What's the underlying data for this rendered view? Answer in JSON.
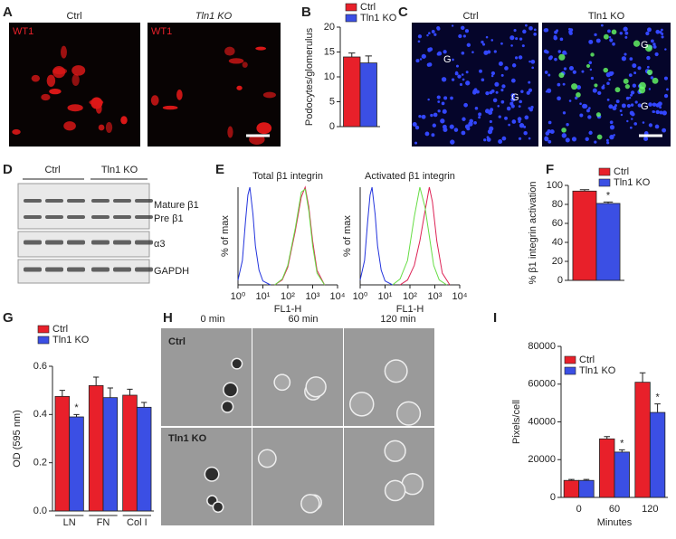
{
  "panel_labels": [
    "A",
    "B",
    "C",
    "D",
    "E",
    "F",
    "G",
    "H",
    "I"
  ],
  "panel_a": {
    "columns": [
      "Ctrl",
      "Tln1 KO"
    ],
    "stain": "WT1"
  },
  "panel_c": {
    "columns": [
      "Ctrl",
      "Tln1 KO"
    ],
    "markers": [
      "G",
      "G",
      "G",
      "G"
    ]
  },
  "panel_d": {
    "groups": [
      "Ctrl",
      "Tln1 KO"
    ],
    "bands": [
      "Mature β1",
      "Pre β1",
      "α3",
      "GAPDH"
    ]
  },
  "panel_h": {
    "columns": [
      "0 min",
      "60 min",
      "120 min"
    ],
    "rows": [
      "Ctrl",
      "Tln1 KO"
    ]
  },
  "chart_data": [
    {
      "type": "bar",
      "ylabel": "Podocytes/glomerulus",
      "categories": [
        null
      ],
      "series": [
        {
          "name": "Ctrl",
          "color": "#e8202a",
          "values": [
            14
          ],
          "errors": [
            0.8
          ]
        },
        {
          "name": "Tln1 KO",
          "color": "#3b4fe4",
          "values": [
            12.8
          ],
          "errors": [
            1.4
          ]
        }
      ],
      "ylim": [
        0,
        20
      ],
      "yticks": [
        0,
        5,
        10,
        15,
        20
      ]
    },
    {
      "type": "line",
      "title": "Total β1 integrin",
      "ylabel": "% of max",
      "xlabel": "FL1-H",
      "log_x": true,
      "xlim": [
        1,
        10000
      ],
      "xticks": [
        {
          "value": 1,
          "label": "10⁰"
        },
        {
          "value": 10,
          "label": "10¹"
        },
        {
          "value": 100,
          "label": "10²"
        },
        {
          "value": 1000,
          "label": "10³"
        },
        {
          "value": 10000,
          "label": "10⁴"
        }
      ],
      "ylim": [
        0,
        100
      ],
      "series": [
        {
          "color": "#2233dd",
          "x": [
            1,
            1.5,
            2,
            2.5,
            3,
            4,
            5,
            7,
            10,
            20
          ],
          "values": [
            5,
            25,
            65,
            92,
            100,
            72,
            40,
            15,
            4,
            0
          ]
        },
        {
          "color": "#dd2255",
          "x": [
            30,
            60,
            100,
            200,
            350,
            500,
            700,
            1000,
            1500,
            3000
          ],
          "values": [
            0,
            5,
            18,
            55,
            90,
            100,
            80,
            45,
            15,
            0
          ]
        },
        {
          "color": "#66dd44",
          "x": [
            30,
            60,
            100,
            200,
            350,
            500,
            700,
            1000,
            1500,
            3000
          ],
          "values": [
            0,
            6,
            20,
            58,
            95,
            98,
            76,
            40,
            12,
            0
          ]
        }
      ]
    },
    {
      "type": "line",
      "title": "Activated β1 integrin",
      "ylabel": "% of max",
      "xlabel": "FL1-H",
      "log_x": true,
      "xlim": [
        1,
        10000
      ],
      "xticks": [
        {
          "value": 1,
          "label": "10⁰"
        },
        {
          "value": 10,
          "label": "10¹"
        },
        {
          "value": 100,
          "label": "10²"
        },
        {
          "value": 1000,
          "label": "10³"
        },
        {
          "value": 10000,
          "label": "10⁴"
        }
      ],
      "ylim": [
        0,
        100
      ],
      "series": [
        {
          "color": "#2233dd",
          "x": [
            1,
            1.5,
            2,
            2.5,
            3,
            4,
            5,
            7,
            10,
            20
          ],
          "values": [
            5,
            25,
            65,
            92,
            100,
            72,
            40,
            15,
            4,
            0
          ]
        },
        {
          "color": "#dd2255",
          "x": [
            40,
            80,
            150,
            250,
            400,
            600,
            800,
            1200,
            2000,
            4000
          ],
          "values": [
            0,
            5,
            20,
            45,
            75,
            100,
            85,
            45,
            12,
            0
          ]
        },
        {
          "color": "#66dd44",
          "x": [
            20,
            40,
            80,
            150,
            250,
            400,
            600,
            900,
            1500,
            3000
          ],
          "values": [
            0,
            6,
            25,
            70,
            100,
            80,
            50,
            20,
            5,
            0
          ]
        }
      ]
    },
    {
      "type": "bar",
      "ylabel": "% β1 integrin activation",
      "categories": [
        null
      ],
      "series": [
        {
          "name": "Ctrl",
          "color": "#e8202a",
          "values": [
            94
          ],
          "errors": [
            1.5
          ]
        },
        {
          "name": "Tln1 KO",
          "color": "#3b4fe4",
          "values": [
            81
          ],
          "errors": [
            1.5
          ],
          "annotations": [
            "*"
          ]
        }
      ],
      "ylim": [
        0,
        100
      ],
      "yticks": [
        0,
        20,
        40,
        60,
        80,
        100
      ]
    },
    {
      "type": "bar",
      "ylabel": "OD (595 nm)",
      "categories": [
        "LN",
        "FN",
        "Col I"
      ],
      "series": [
        {
          "name": "Ctrl",
          "color": "#e8202a",
          "values": [
            0.475,
            0.52,
            0.48
          ],
          "errors": [
            0.025,
            0.035,
            0.025
          ]
        },
        {
          "name": "Tln1 KO",
          "color": "#3b4fe4",
          "values": [
            0.39,
            0.47,
            0.43
          ],
          "errors": [
            0.01,
            0.04,
            0.02
          ],
          "annotations": [
            "*",
            null,
            null
          ]
        }
      ],
      "ylim": [
        0,
        0.6
      ],
      "yticks": [
        {
          "value": 0,
          "label": "0.0"
        },
        0.2,
        0.4,
        0.6
      ]
    },
    {
      "type": "bar",
      "ylabel": "Pixels/cell",
      "xlabel": "Minutes",
      "categories": [
        "0",
        "60",
        "120"
      ],
      "series": [
        {
          "name": "Ctrl",
          "color": "#e8202a",
          "values": [
            9000,
            31000,
            61000
          ],
          "errors": [
            500,
            1200,
            5000
          ]
        },
        {
          "name": "Tln1 KO",
          "color": "#3b4fe4",
          "values": [
            9000,
            24000,
            45000
          ],
          "errors": [
            500,
            1200,
            4500
          ],
          "annotations": [
            null,
            "*",
            "*"
          ]
        }
      ],
      "ylim": [
        0,
        80000
      ],
      "yticks": [
        0,
        20000,
        40000,
        60000,
        80000
      ]
    }
  ]
}
